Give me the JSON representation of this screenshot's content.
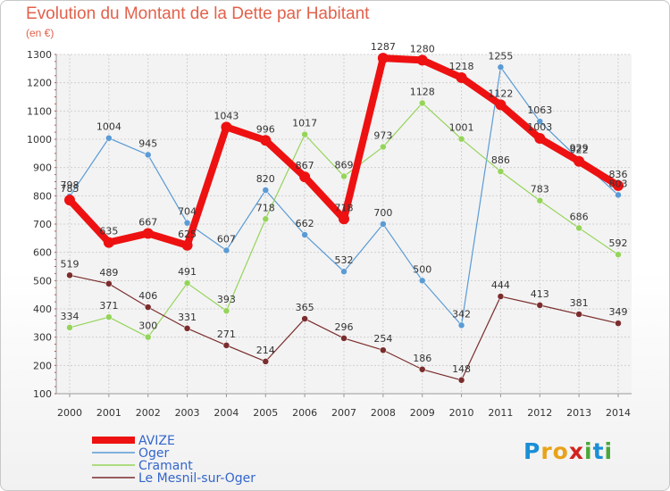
{
  "title": "Evolution du Montant de la Dette par Habitant",
  "subtitle": "(en €)",
  "brand": {
    "letters": [
      "P",
      "r",
      "o",
      "x",
      "i",
      "t",
      "i"
    ],
    "colors": [
      "#1a8fd6",
      "#e8a21a",
      "#e8a21a",
      "#d2231f",
      "#4aa838",
      "#1a8fd6",
      "#4aa838"
    ]
  },
  "chart_data": {
    "type": "line",
    "title": "Evolution du Montant de la Dette par Habitant",
    "subtitle": "(en €)",
    "xlabel": "",
    "ylabel": "",
    "x": [
      "2000",
      "2001",
      "2002",
      "2003",
      "2004",
      "2005",
      "2006",
      "2007",
      "2008",
      "2009",
      "2010",
      "2011",
      "2012",
      "2013",
      "2014"
    ],
    "ylim": [
      100,
      1300
    ],
    "yticks": [
      "100",
      "200",
      "300",
      "400",
      "500",
      "600",
      "700",
      "800",
      "900",
      "1000",
      "1100",
      "1200",
      "1300"
    ],
    "grid": true,
    "legend_position": "bottom-left",
    "series": [
      {
        "name": "Oger",
        "color": "#5b9bd5",
        "values": [
          798,
          1004,
          945,
          704,
          607,
          820,
          662,
          532,
          700,
          500,
          342,
          1255,
          1063,
          929,
          803
        ],
        "labels": [
          "798",
          "1004",
          "945",
          "704",
          "607",
          "820",
          "662",
          "532",
          "700",
          "500",
          "342",
          "1255",
          "1063",
          "929",
          "803"
        ]
      },
      {
        "name": "Cramant",
        "color": "#95d45a",
        "values": [
          334,
          371,
          300,
          491,
          393,
          718,
          1017,
          869,
          973,
          1128,
          1001,
          886,
          783,
          686,
          592
        ],
        "labels": [
          "334",
          "371",
          "300",
          "491",
          "393",
          "718",
          "1017",
          "869",
          "973",
          "1128",
          "1001",
          "886",
          "783",
          "686",
          "592"
        ]
      },
      {
        "name": "Le Mesnil-sur-Oger",
        "color": "#7b2d2d",
        "values": [
          519,
          489,
          406,
          331,
          271,
          214,
          365,
          296,
          254,
          186,
          148,
          444,
          413,
          381,
          349
        ],
        "labels": [
          "519",
          "489",
          "406",
          "331",
          "271",
          "214",
          "365",
          "296",
          "254",
          "186",
          "148",
          "444",
          "413",
          "381",
          "349"
        ]
      },
      {
        "name": "AVIZE",
        "color": "#ee1111",
        "values": [
          785,
          635,
          667,
          625,
          1043,
          996,
          867,
          718,
          1287,
          1280,
          1218,
          1122,
          1003,
          922,
          836
        ],
        "labels": [
          "785",
          "635",
          "667",
          "625",
          "1043",
          "996",
          "867",
          "718",
          "1287",
          "1280",
          "1218",
          "1122",
          "1003",
          "922",
          "836"
        ]
      }
    ]
  }
}
